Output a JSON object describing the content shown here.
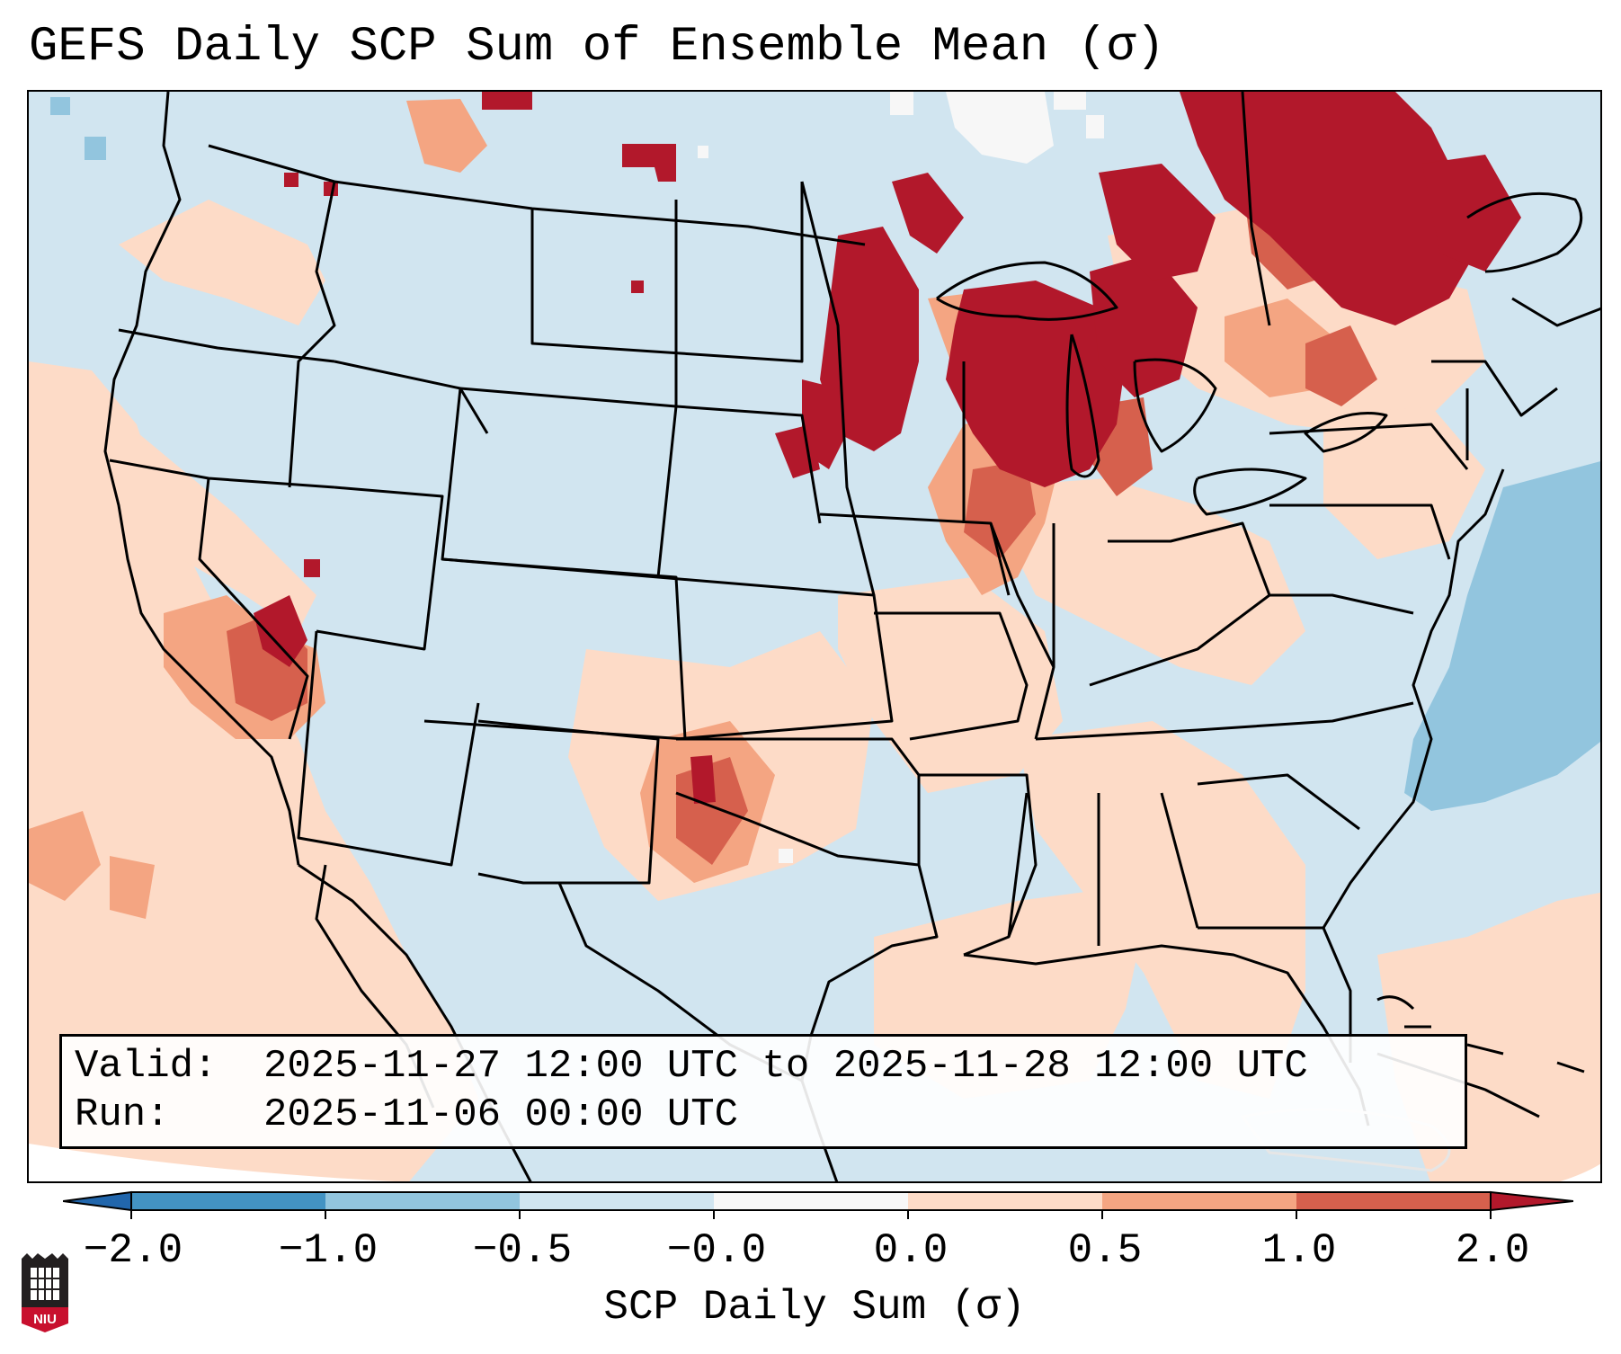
{
  "title": "GEFS Daily SCP Sum of Ensemble Mean (σ)",
  "info": {
    "valid_label": "Valid:",
    "valid_value": "2025-11-27 12:00 UTC to 2025-11-28 12:00 UTC",
    "run_label": "Run:",
    "run_value": "2025-11-06 00:00 UTC"
  },
  "colorbar": {
    "label": "SCP Daily Sum (σ)",
    "ticks": [
      "−2.0",
      "−1.0",
      "−0.5",
      "−0.0",
      "0.0",
      "0.5",
      "1.0",
      "2.0"
    ],
    "colors": [
      "#2166ac",
      "#4393c3",
      "#92c5de",
      "#d1e5f0",
      "#f7f7f7",
      "#fddbc7",
      "#f4a582",
      "#d6604d",
      "#b2182b"
    ]
  },
  "map": {
    "background_color": "#d1e5f0",
    "ocean_neg_color": "#92c5de",
    "pos_low_color": "#fddbc7",
    "pos_mid_color": "#f4a582",
    "pos_high_color": "#d6604d",
    "pos_max_color": "#b2182b",
    "neutral_color": "#f7f7f7"
  },
  "logo": {
    "text": "NIU",
    "icon": "niu-seal-icon"
  }
}
